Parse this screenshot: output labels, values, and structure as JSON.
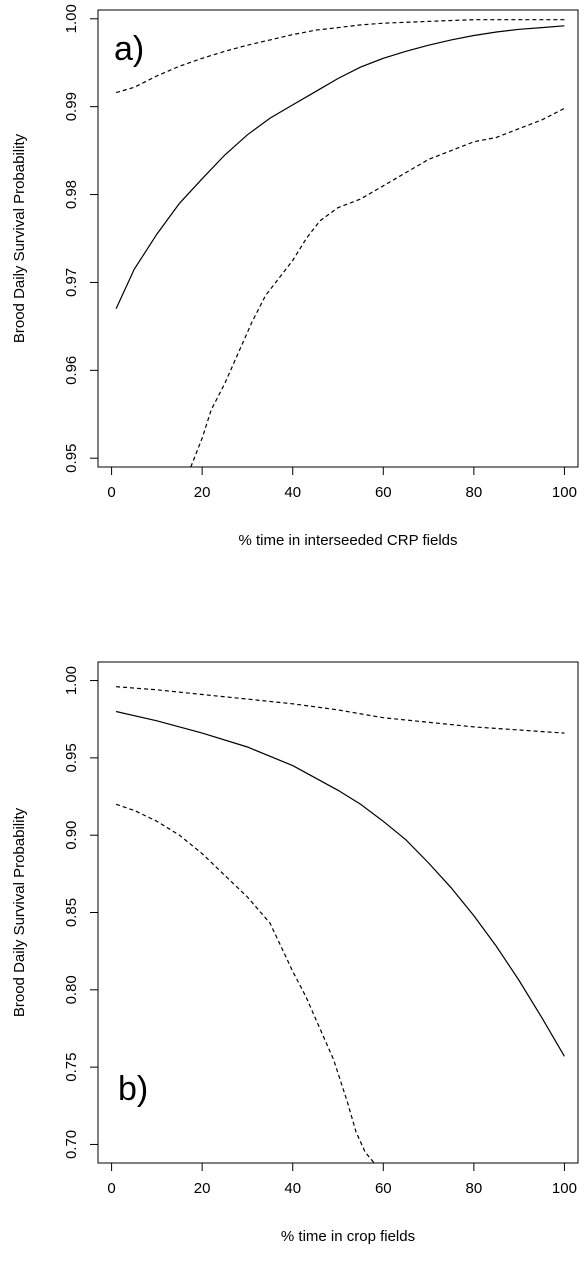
{
  "chart_data": [
    {
      "type": "line",
      "panel_label": "a)",
      "xlabel": "% time in interseeded CRP fields",
      "ylabel": "Brood Daily Survival Probability",
      "xlim": [
        -3,
        103
      ],
      "ylim": [
        0.949,
        1.001
      ],
      "x_ticks": [
        0,
        20,
        40,
        60,
        80,
        100
      ],
      "x_tick_labels": [
        "0",
        "20",
        "40",
        "60",
        "80",
        "100"
      ],
      "y_ticks": [
        0.95,
        0.96,
        0.97,
        0.98,
        0.99,
        1.0
      ],
      "y_tick_labels": [
        "0.95",
        "0.96",
        "0.97",
        "0.98",
        "0.99",
        "1.00"
      ],
      "grid": false,
      "series": [
        {
          "style": "solid",
          "x": [
            1,
            5,
            10,
            15,
            20,
            25,
            30,
            35,
            40,
            45,
            50,
            55,
            60,
            65,
            70,
            75,
            80,
            85,
            90,
            95,
            100
          ],
          "y": [
            0.967,
            0.9715,
            0.9755,
            0.979,
            0.9818,
            0.9845,
            0.9868,
            0.9887,
            0.9902,
            0.9917,
            0.9932,
            0.9945,
            0.9955,
            0.9963,
            0.997,
            0.9976,
            0.9981,
            0.9985,
            0.9988,
            0.999,
            0.9992
          ]
        },
        {
          "style": "dashed",
          "x": [
            1,
            5,
            10,
            15,
            20,
            25,
            30,
            35,
            40,
            45,
            50,
            55,
            60,
            65,
            70,
            75,
            80,
            85,
            90,
            95,
            100
          ],
          "y": [
            0.9916,
            0.9922,
            0.9935,
            0.9946,
            0.9955,
            0.9963,
            0.997,
            0.9976,
            0.9982,
            0.9987,
            0.999,
            0.9993,
            0.9995,
            0.9996,
            0.9997,
            0.9998,
            0.9999,
            0.9999,
            0.9999,
            0.9999,
            0.9999
          ]
        },
        {
          "style": "dashed",
          "x": [
            17.5,
            20,
            22,
            25,
            28,
            31,
            34,
            37,
            40,
            43,
            46,
            50,
            55,
            60,
            65,
            70,
            75,
            80,
            85,
            90,
            95,
            100
          ],
          "y": [
            0.949,
            0.9523,
            0.9555,
            0.9585,
            0.962,
            0.9655,
            0.9685,
            0.9705,
            0.9725,
            0.975,
            0.977,
            0.9785,
            0.9795,
            0.981,
            0.9825,
            0.984,
            0.985,
            0.986,
            0.9865,
            0.9875,
            0.9885,
            0.9898
          ]
        }
      ]
    },
    {
      "type": "line",
      "panel_label": "b)",
      "xlabel": "% time in crop fields",
      "ylabel": "Brood Daily Survival Probability",
      "xlim": [
        -3,
        103
      ],
      "ylim": [
        0.688,
        1.012
      ],
      "x_ticks": [
        0,
        20,
        40,
        60,
        80,
        100
      ],
      "x_tick_labels": [
        "0",
        "20",
        "40",
        "60",
        "80",
        "100"
      ],
      "y_ticks": [
        0.7,
        0.75,
        0.8,
        0.85,
        0.9,
        0.95,
        1.0
      ],
      "y_tick_labels": [
        "0.70",
        "0.75",
        "0.80",
        "0.85",
        "0.90",
        "0.95",
        "1.00"
      ],
      "grid": false,
      "series": [
        {
          "style": "solid",
          "x": [
            1,
            10,
            20,
            30,
            40,
            50,
            55,
            60,
            65,
            70,
            75,
            80,
            85,
            90,
            95,
            100
          ],
          "y": [
            0.98,
            0.974,
            0.966,
            0.957,
            0.945,
            0.929,
            0.92,
            0.909,
            0.897,
            0.882,
            0.866,
            0.848,
            0.828,
            0.806,
            0.782,
            0.757
          ]
        },
        {
          "style": "dashed",
          "x": [
            1,
            10,
            20,
            30,
            40,
            50,
            60,
            70,
            80,
            90,
            100
          ],
          "y": [
            0.996,
            0.994,
            0.991,
            0.988,
            0.985,
            0.981,
            0.976,
            0.973,
            0.97,
            0.968,
            0.966
          ]
        },
        {
          "style": "dashed",
          "x": [
            1,
            5,
            10,
            15,
            20,
            25,
            30,
            35,
            40,
            43,
            46,
            49,
            52,
            54,
            56,
            58
          ],
          "y": [
            0.92,
            0.916,
            0.909,
            0.9,
            0.888,
            0.874,
            0.86,
            0.843,
            0.812,
            0.795,
            0.775,
            0.755,
            0.728,
            0.708,
            0.695,
            0.688
          ]
        }
      ]
    }
  ]
}
